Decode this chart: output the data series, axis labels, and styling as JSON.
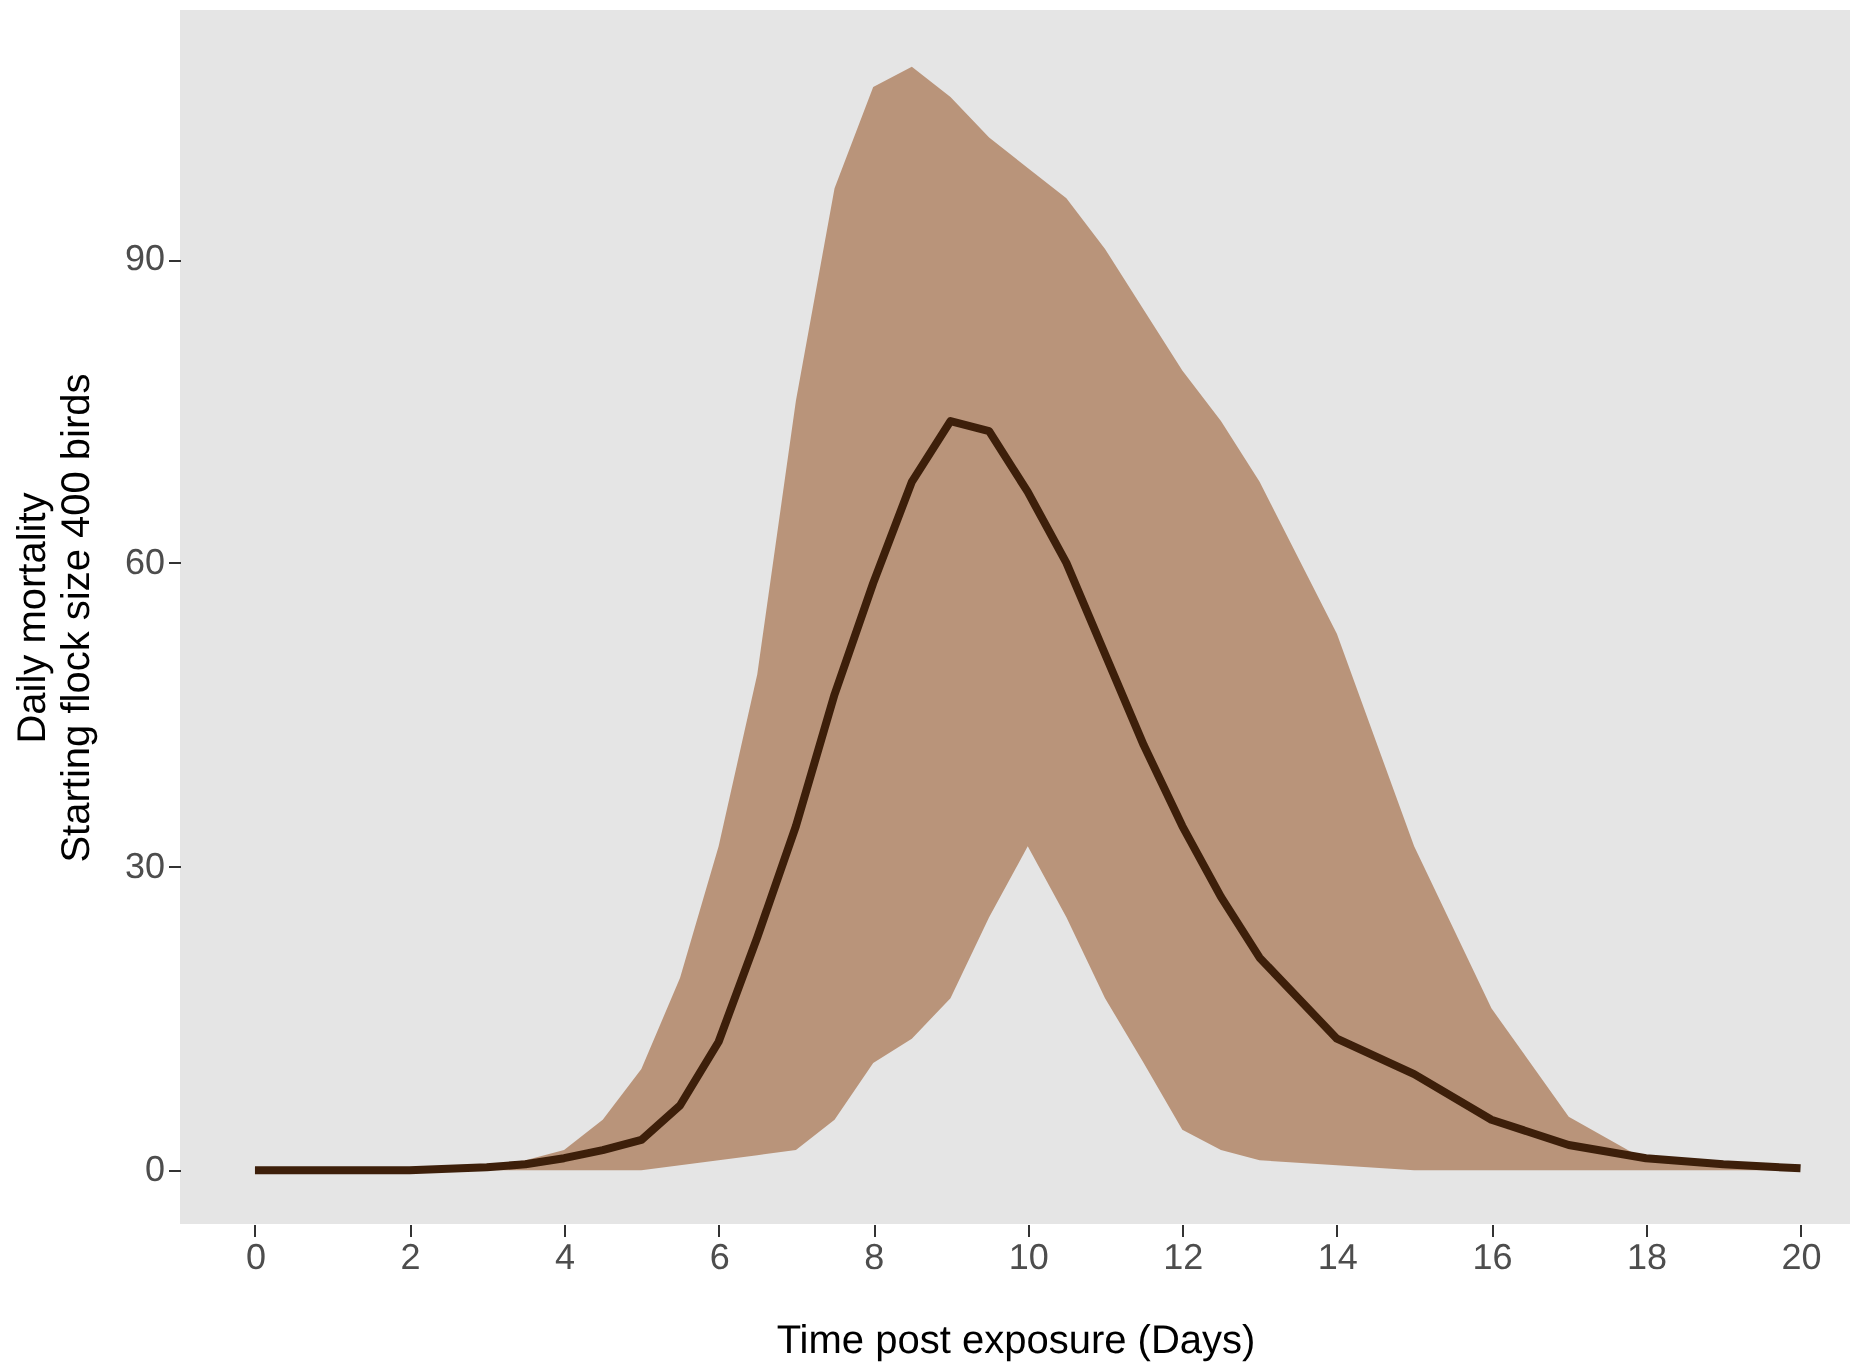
{
  "chart_data": {
    "type": "line",
    "xlabel": "Time post exposure (Days)",
    "ylabel": "Daily mortality\nStarting flock size 400 birds",
    "xlim": [
      -0.97,
      20.64
    ],
    "xticks": [
      0,
      2,
      4,
      6,
      8,
      10,
      12,
      14,
      16,
      18,
      20
    ],
    "ylim": [
      -5.3,
      114.6
    ],
    "yticks": [
      0,
      30,
      60,
      90
    ],
    "grid": false,
    "marker": "none",
    "line_style": "solid",
    "series": [
      {
        "color": "#3d1f0a",
        "x": [
          0,
          1,
          2,
          3,
          3.5,
          4,
          4.5,
          5,
          5.5,
          6,
          6.5,
          7,
          7.5,
          8,
          8.5,
          9,
          9.5,
          10,
          10.5,
          11,
          11.5,
          12,
          12.5,
          13,
          14,
          15,
          16,
          17,
          18,
          19,
          20
        ],
        "values": [
          0,
          0,
          0,
          0.3,
          0.6,
          1.2,
          2,
          3,
          6.4,
          12.7,
          23,
          34,
          47,
          58,
          68,
          74,
          73,
          67,
          60,
          51,
          42,
          34,
          27,
          21,
          13,
          9.5,
          5,
          2.5,
          1.2,
          0.6,
          0.2
        ],
        "lower": [
          0,
          0,
          0,
          0,
          0,
          0,
          0,
          0,
          0.5,
          1,
          1.5,
          2,
          5,
          10.6,
          13,
          17,
          25,
          32,
          25,
          17,
          10.6,
          4,
          2,
          1,
          0.5,
          0,
          0,
          0,
          0,
          0,
          0
        ],
        "upper": [
          0,
          0,
          0,
          0.5,
          1,
          2,
          5,
          10,
          19,
          32,
          49,
          76,
          97,
          107,
          109,
          106,
          102,
          99,
          96,
          91,
          85,
          79,
          74,
          68,
          53,
          32,
          16,
          5.3,
          1,
          0.5,
          0
        ]
      }
    ]
  }
}
